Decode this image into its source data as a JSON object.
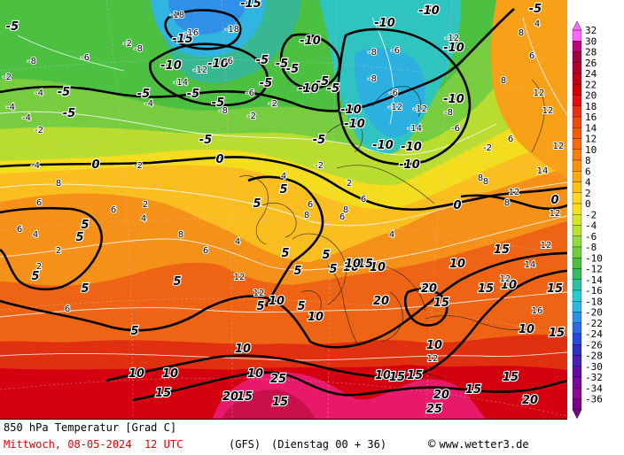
{
  "footer": {
    "title": "850 hPa Temperatur [Grad C]",
    "valid_time": "Mittwoch, 08-05-2024  12 UTC",
    "model": "(GFS)",
    "run": "(Dienstag 00 + 36)",
    "credit": "www.wetter3.de",
    "copyright_icon": "copyright-icon"
  },
  "legend": {
    "ticks": [
      "32",
      "30",
      "28",
      "26",
      "24",
      "22",
      "20",
      "18",
      "16",
      "14",
      "12",
      "10",
      "8",
      "6",
      "4",
      "2",
      "0",
      "-2",
      "-4",
      "-6",
      "-8",
      "-10",
      "-12",
      "-14",
      "-16",
      "-18",
      "-20",
      "-22",
      "-24",
      "-26",
      "-28",
      "-30",
      "-32",
      "-34",
      "-36"
    ],
    "colors": [
      "#ff66ff",
      "#c0007a",
      "#a00040",
      "#b00030",
      "#c00018",
      "#d20000",
      "#e01010",
      "#e83018",
      "#ee4a10",
      "#f25a10",
      "#f46a10",
      "#f57e12",
      "#f79214",
      "#f8a818",
      "#fac020",
      "#fcd828",
      "#f4e020",
      "#d8e428",
      "#b8e030",
      "#94d840",
      "#70cc40",
      "#4cc040",
      "#38b860",
      "#30c0a0",
      "#2ccccc",
      "#30b8e0",
      "#3090e8",
      "#2c6ce0",
      "#2a4ad8",
      "#3030c0",
      "#4a20b0",
      "#6010a0",
      "#780c98",
      "#8a0a90",
      "#7a0088"
    ]
  },
  "map": {
    "bold_labels": [
      {
        "t": "-5"
      },
      {
        "t": "-15"
      },
      {
        "t": "-10"
      },
      {
        "t": "-15"
      },
      {
        "t": "-10"
      },
      {
        "t": "-5"
      },
      {
        "t": "-5"
      },
      {
        "t": "-5"
      },
      {
        "t": "-5"
      },
      {
        "t": "-10"
      },
      {
        "t": "-10"
      },
      {
        "t": "-5"
      },
      {
        "t": "-5"
      },
      {
        "t": "-5"
      },
      {
        "t": "-10"
      },
      {
        "t": "-10"
      },
      {
        "t": "-10"
      },
      {
        "t": "-5"
      },
      {
        "t": "-10"
      },
      {
        "t": "-5"
      },
      {
        "t": "-5"
      },
      {
        "t": "-5"
      },
      {
        "t": "-5"
      },
      {
        "t": "-10"
      },
      {
        "t": "-5"
      },
      {
        "t": "-5"
      },
      {
        "t": "-10"
      },
      {
        "t": "-10"
      },
      {
        "t": "-10"
      },
      {
        "t": "-10"
      },
      {
        "t": "0"
      },
      {
        "t": "0"
      },
      {
        "t": "0"
      },
      {
        "t": "0"
      },
      {
        "t": "-5"
      },
      {
        "t": "5"
      },
      {
        "t": "5"
      },
      {
        "t": "5"
      },
      {
        "t": "5"
      },
      {
        "t": "5"
      },
      {
        "t": "5"
      },
      {
        "t": "5"
      },
      {
        "t": "5"
      },
      {
        "t": "5"
      },
      {
        "t": "5"
      },
      {
        "t": "5"
      },
      {
        "t": "5"
      },
      {
        "t": "5"
      },
      {
        "t": "5"
      },
      {
        "t": "10"
      },
      {
        "t": "10"
      },
      {
        "t": "10"
      },
      {
        "t": "10"
      },
      {
        "t": "10"
      },
      {
        "t": "10"
      },
      {
        "t": "10"
      },
      {
        "t": "10"
      },
      {
        "t": "10"
      },
      {
        "t": "10"
      },
      {
        "t": "10"
      },
      {
        "t": "10"
      },
      {
        "t": "10"
      },
      {
        "t": "15"
      },
      {
        "t": "15"
      },
      {
        "t": "15"
      },
      {
        "t": "15"
      },
      {
        "t": "15"
      },
      {
        "t": "15"
      },
      {
        "t": "15"
      },
      {
        "t": "15"
      },
      {
        "t": "15"
      },
      {
        "t": "15"
      },
      {
        "t": "15"
      },
      {
        "t": "15"
      },
      {
        "t": "15"
      },
      {
        "t": "20"
      },
      {
        "t": "20"
      },
      {
        "t": "20"
      },
      {
        "t": "20"
      },
      {
        "t": "20"
      },
      {
        "t": "25"
      },
      {
        "t": "25"
      },
      {
        "t": "10"
      },
      {
        "t": "15"
      }
    ],
    "point_values": [
      {
        "t": "-2"
      },
      {
        "t": "-4"
      },
      {
        "t": "-8"
      },
      {
        "t": "-4"
      },
      {
        "t": "-2"
      },
      {
        "t": "-6"
      },
      {
        "t": "-4"
      },
      {
        "t": "-18"
      },
      {
        "t": "-16"
      },
      {
        "t": "-18"
      },
      {
        "t": "-12"
      },
      {
        "t": "-14"
      },
      {
        "t": "-6"
      },
      {
        "t": "-8"
      },
      {
        "t": "-2"
      },
      {
        "t": "-4"
      },
      {
        "t": "-6"
      },
      {
        "t": "-8"
      },
      {
        "t": "-2"
      },
      {
        "t": "-2"
      },
      {
        "t": "-6"
      },
      {
        "t": "-8"
      },
      {
        "t": "-8"
      },
      {
        "t": "-6"
      },
      {
        "t": "-12"
      },
      {
        "t": "-14"
      },
      {
        "t": "-12"
      },
      {
        "t": "-12"
      },
      {
        "t": "-8"
      },
      {
        "t": "-6"
      },
      {
        "t": "-2"
      },
      {
        "t": "-4"
      },
      {
        "t": "-2"
      },
      {
        "t": "8"
      },
      {
        "t": "6"
      },
      {
        "t": "6"
      },
      {
        "t": "4"
      },
      {
        "t": "2"
      },
      {
        "t": "2"
      },
      {
        "t": "6"
      },
      {
        "t": "4"
      },
      {
        "t": "2"
      },
      {
        "t": "6"
      },
      {
        "t": "8"
      },
      {
        "t": "6"
      },
      {
        "t": "4"
      },
      {
        "t": "4"
      },
      {
        "t": "6"
      },
      {
        "t": "8"
      },
      {
        "t": "6"
      },
      {
        "t": "8"
      },
      {
        "t": "8"
      },
      {
        "t": "8"
      },
      {
        "t": "12"
      },
      {
        "t": "12"
      },
      {
        "t": "12"
      },
      {
        "t": "14"
      },
      {
        "t": "12"
      },
      {
        "t": "12"
      },
      {
        "t": "12"
      },
      {
        "t": "16"
      },
      {
        "t": "12"
      },
      {
        "t": "14"
      },
      {
        "t": "8"
      },
      {
        "t": "6"
      },
      {
        "t": "4"
      },
      {
        "t": "2"
      },
      {
        "t": "-2"
      },
      {
        "t": "6"
      },
      {
        "t": "6"
      },
      {
        "t": "4"
      },
      {
        "t": "8"
      },
      {
        "t": "8"
      },
      {
        "t": "12"
      },
      {
        "t": "12"
      },
      {
        "t": "12"
      }
    ]
  }
}
